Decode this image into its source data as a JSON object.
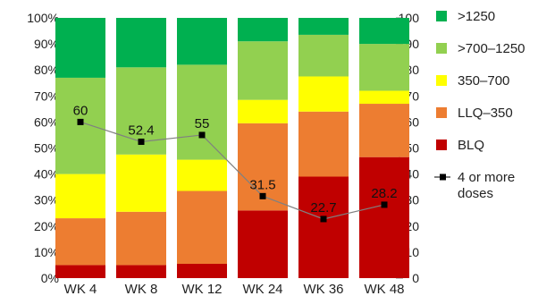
{
  "chart_data": {
    "type": "bar",
    "stacked": true,
    "categories": [
      "WK 4",
      "WK 8",
      "WK 12",
      "WK 24",
      "WK 36",
      "WK 48"
    ],
    "series": [
      {
        "name": "BLQ",
        "color": "#c00000",
        "values": [
          5,
          5,
          5.5,
          26,
          39,
          46.5
        ]
      },
      {
        "name": "LLQ–350",
        "color": "#ed7d31",
        "values": [
          18,
          20.5,
          28,
          33.5,
          25,
          20.5
        ]
      },
      {
        "name": "350–700",
        "color": "#ffff00",
        "values": [
          17,
          22,
          12,
          9,
          13.5,
          5
        ]
      },
      {
        "name": ">700–1250",
        "color": "#92d050",
        "values": [
          37,
          33.5,
          36.5,
          22.5,
          16,
          18
        ]
      },
      {
        "name": ">1250",
        "color": "#00b050",
        "values": [
          23,
          19,
          18,
          9,
          6.5,
          10
        ]
      }
    ],
    "line_series": {
      "name": "4 or more doses",
      "legend_lines": [
        "4 or more",
        "doses"
      ],
      "color": "#808080",
      "marker_color": "#000000",
      "values": [
        60,
        52.4,
        55,
        31.5,
        22.7,
        28.2
      ],
      "labels": [
        "60",
        "52.4",
        "55",
        "31.5",
        "22.7",
        "28.2"
      ]
    },
    "y_left": {
      "min": 0,
      "max": 100,
      "ticks": [
        0,
        10,
        20,
        30,
        40,
        50,
        60,
        70,
        80,
        90,
        100
      ],
      "tick_labels": [
        "0%",
        "10%",
        "20%",
        "30%",
        "40%",
        "50%",
        "60%",
        "70%",
        "80%",
        "90%",
        "100%"
      ]
    },
    "y_right": {
      "min": 0,
      "max": 100,
      "ticks": [
        0,
        10,
        20,
        30,
        40,
        50,
        60,
        70,
        80,
        90,
        100
      ],
      "tick_labels": [
        "0",
        "10",
        "20",
        "30",
        "40",
        "50",
        "60",
        "70",
        "80",
        "90",
        "100"
      ]
    },
    "legend_order": [
      ">1250",
      ">700–1250",
      "350–700",
      "LLQ–350",
      "BLQ",
      "4 or more doses"
    ],
    "legend_position": "right",
    "grid": false,
    "title": "",
    "xlabel": "",
    "ylabel": ""
  }
}
